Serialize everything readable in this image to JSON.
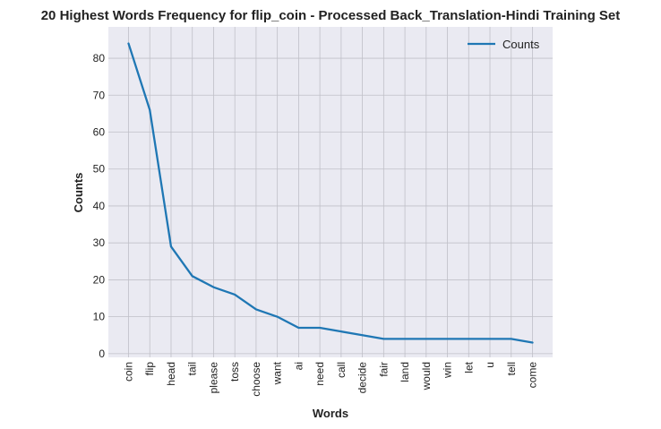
{
  "chart_data": {
    "type": "line",
    "title": "20 Highest Words Frequency for flip_coin - Processed Back_Translation-Hindi Training Set",
    "xlabel": "Words",
    "ylabel": "Counts",
    "categories": [
      "coin",
      "flip",
      "head",
      "tail",
      "please",
      "toss",
      "choose",
      "want",
      "ai",
      "need",
      "call",
      "decide",
      "fair",
      "land",
      "would",
      "win",
      "let",
      "u",
      "tell",
      "come"
    ],
    "series": [
      {
        "name": "Counts",
        "values": [
          84,
          66,
          29,
          21,
          18,
          16,
          12,
          10,
          7,
          7,
          6,
          5,
          4,
          4,
          4,
          4,
          4,
          4,
          4,
          3
        ],
        "color": "#1f77b4"
      }
    ],
    "ylim": [
      -1,
      88.5
    ],
    "yticks": [
      0,
      10,
      20,
      30,
      40,
      50,
      60,
      70,
      80
    ],
    "grid": true,
    "legend_position": "top-right",
    "background_color": "#eaeaf2",
    "grid_color": "#c0c0c8"
  }
}
